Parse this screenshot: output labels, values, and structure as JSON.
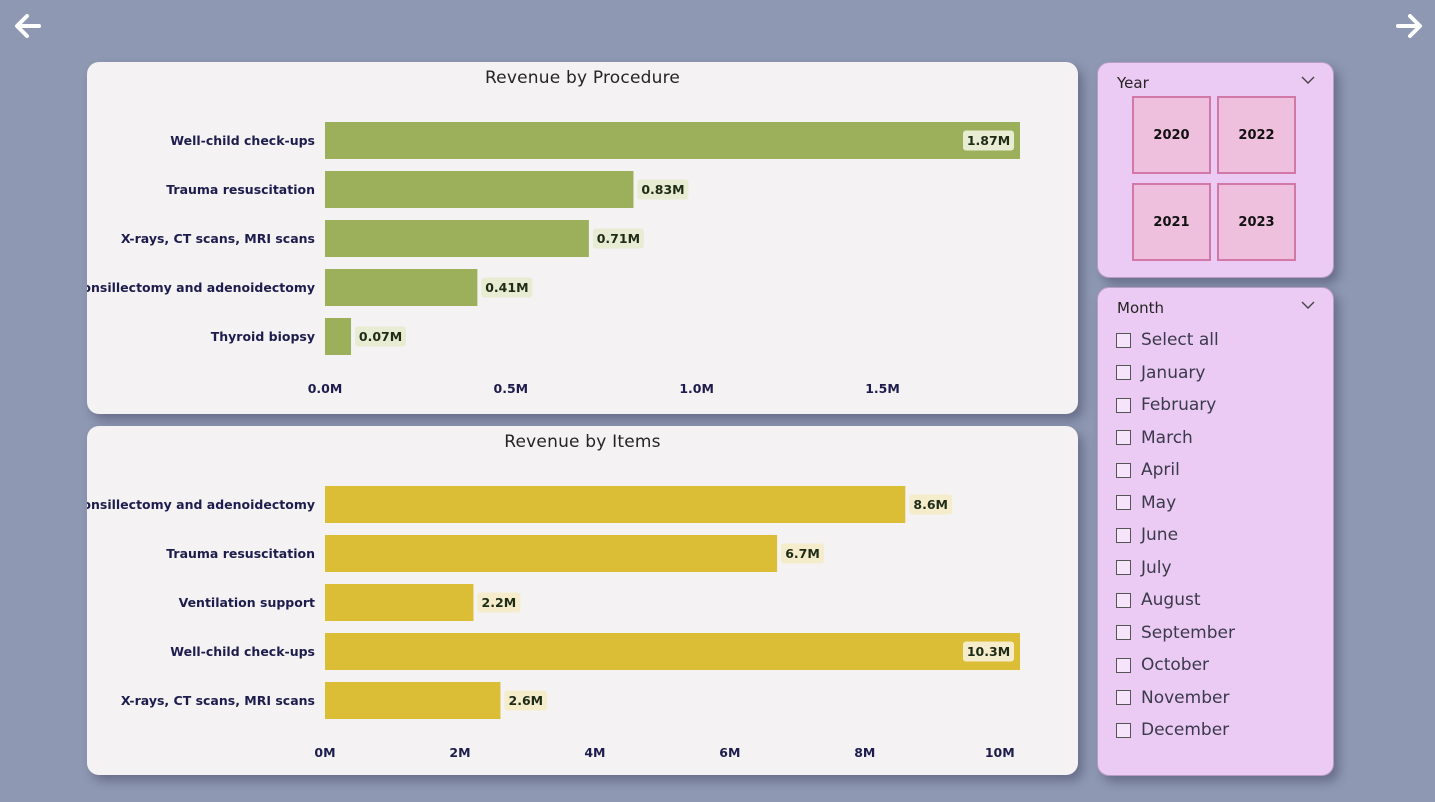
{
  "nav": {
    "back_icon": "arrow-left-icon",
    "forward_icon": "arrow-right-icon"
  },
  "charts": {
    "procedure": {
      "title": "Revenue by Procedure"
    },
    "items": {
      "title": "Revenue by Items"
    }
  },
  "chart_data": [
    {
      "type": "bar",
      "orientation": "horizontal",
      "title": "Revenue by Procedure",
      "categories": [
        "Well-child check-ups",
        "Trauma resuscitation",
        "X-rays, CT scans, MRI scans",
        "Tonsillectomy and adenoidectomy",
        "Thyroid biopsy"
      ],
      "values": [
        1.87,
        0.83,
        0.71,
        0.41,
        0.07
      ],
      "value_labels": [
        "1.87M",
        "0.83M",
        "0.71M",
        "0.41M",
        "0.07M"
      ],
      "value_unit": "M",
      "xlim": [
        0,
        1.87
      ],
      "ticks": [
        0,
        0.5,
        1.0,
        1.5
      ],
      "tick_labels": [
        "0.0M",
        "0.5M",
        "1.0M",
        "1.5M"
      ],
      "bar_color": "#9cb05c",
      "label_bg": "#e8ecd2",
      "grid": false
    },
    {
      "type": "bar",
      "orientation": "horizontal",
      "title": "Revenue by Items",
      "categories": [
        "Tonsillectomy and adenoidectomy",
        "Trauma resuscitation",
        "Ventilation support",
        "Well-child check-ups",
        "X-rays, CT scans, MRI scans"
      ],
      "values": [
        8.6,
        6.7,
        2.2,
        10.3,
        2.6
      ],
      "value_labels": [
        "8.6M",
        "6.7M",
        "2.2M",
        "10.3M",
        "2.6M"
      ],
      "value_unit": "M",
      "xlim": [
        0,
        10.3
      ],
      "ticks": [
        0,
        2,
        4,
        6,
        8,
        10
      ],
      "tick_labels": [
        "0M",
        "2M",
        "4M",
        "6M",
        "8M",
        "10M"
      ],
      "bar_color": "#dbbd36",
      "label_bg": "#f4ecca",
      "grid": false
    }
  ],
  "year_slicer": {
    "header": "Year",
    "chevron_icon": "chevron-down-icon",
    "tiles": [
      {
        "label": "2020"
      },
      {
        "label": "2022"
      },
      {
        "label": "2021"
      },
      {
        "label": "2023"
      }
    ],
    "tile_bg": "#eec0dd",
    "tile_border": "#d278a8"
  },
  "month_slicer": {
    "header": "Month",
    "chevron_icon": "chevron-down-icon",
    "items": [
      {
        "label": "Select all",
        "checked": false
      },
      {
        "label": "January",
        "checked": false
      },
      {
        "label": "February",
        "checked": false
      },
      {
        "label": "March",
        "checked": false
      },
      {
        "label": "April",
        "checked": false
      },
      {
        "label": "May",
        "checked": false
      },
      {
        "label": "June",
        "checked": false
      },
      {
        "label": "July",
        "checked": false
      },
      {
        "label": "August",
        "checked": false
      },
      {
        "label": "September",
        "checked": false
      },
      {
        "label": "October",
        "checked": false
      },
      {
        "label": "November",
        "checked": false
      },
      {
        "label": "December",
        "checked": false
      }
    ]
  },
  "colors": {
    "page_bg": "#8e98b2",
    "card_bg": "#f4f2f3",
    "slicer_bg": "#ebcaf4"
  }
}
